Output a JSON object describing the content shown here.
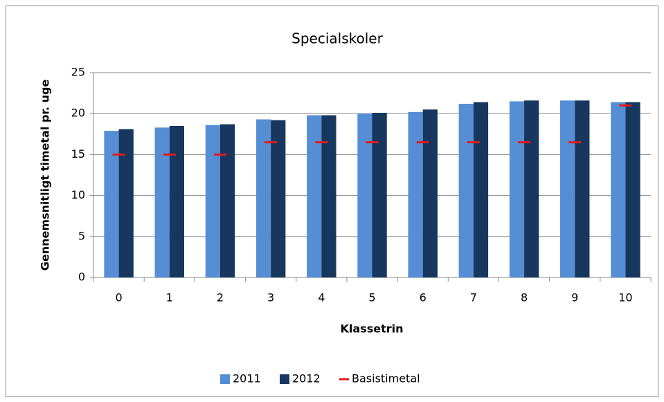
{
  "chart_data": {
    "type": "bar",
    "title": "Specialskoler",
    "x_label": "Klassetrin",
    "y_label": "Gennemsnitligt timetal pr. uge",
    "categories": [
      "0",
      "1",
      "2",
      "3",
      "4",
      "5",
      "6",
      "7",
      "8",
      "9",
      "10"
    ],
    "series": [
      {
        "name": "2011",
        "color": "#558ed5",
        "mark": "bar",
        "values": [
          17.9,
          18.3,
          18.6,
          19.3,
          19.8,
          20.0,
          20.2,
          21.2,
          21.5,
          21.6,
          21.4
        ]
      },
      {
        "name": "2012",
        "color": "#17375e",
        "mark": "bar",
        "values": [
          18.1,
          18.5,
          18.7,
          19.2,
          19.8,
          20.1,
          20.5,
          21.4,
          21.6,
          21.6,
          21.4
        ]
      },
      {
        "name": "Basistimetal",
        "color": "#e31a1c",
        "mark": "dash",
        "values": [
          15,
          15,
          15,
          16.5,
          16.5,
          16.5,
          16.5,
          16.5,
          16.5,
          16.5,
          21
        ]
      }
    ],
    "ylim": [
      0,
      25
    ],
    "yticks": [
      0,
      5,
      10,
      15,
      20,
      25
    ],
    "grid": true,
    "legend": "bottom"
  }
}
